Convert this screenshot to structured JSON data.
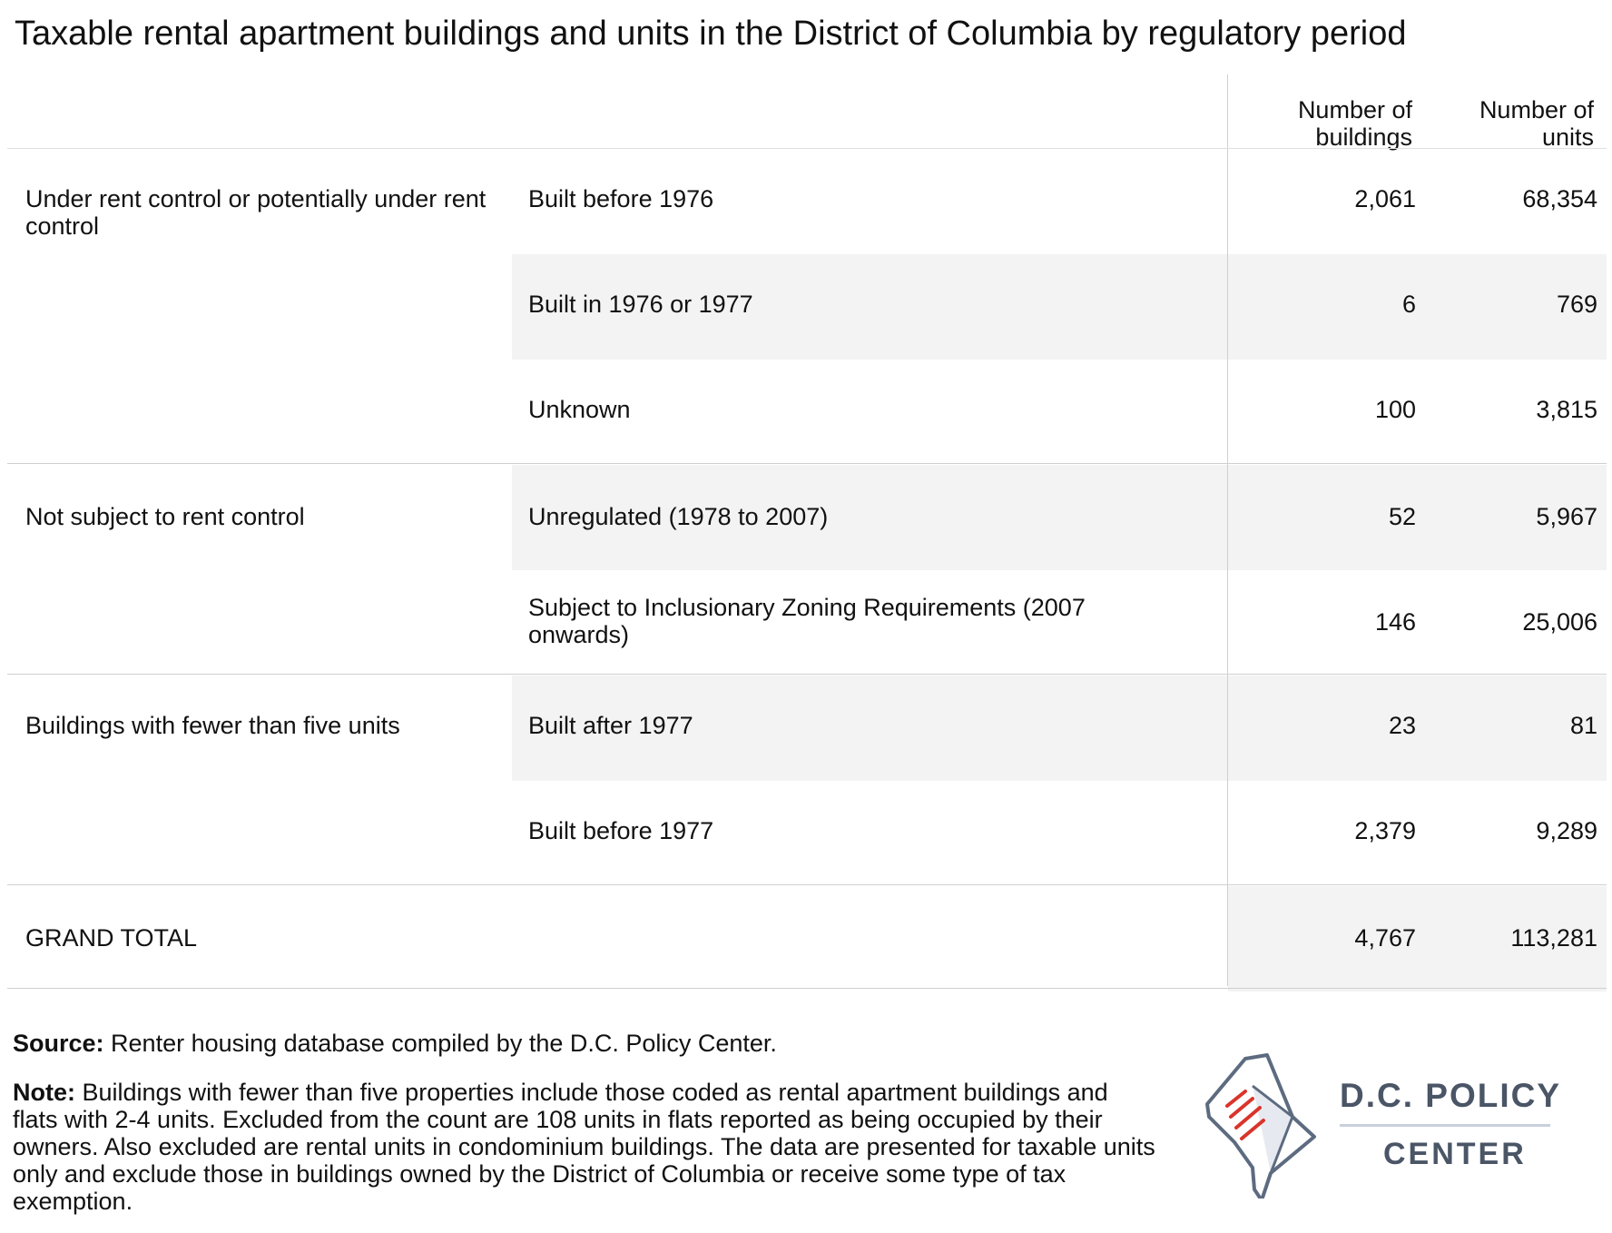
{
  "title": "Taxable rental apartment buildings and units in the District of Columbia by regulatory period",
  "header": {
    "buildings_line1": "Number of",
    "buildings_line2": "buildings",
    "units_line1": "Number of",
    "units_line2": "units"
  },
  "rows": [
    {
      "group": "Under rent control or potentially under rent control",
      "sub": "Built before 1976",
      "buildings": "2,061",
      "units": "68,354"
    },
    {
      "group": "",
      "sub": "Built in 1976 or 1977",
      "buildings": "6",
      "units": "769"
    },
    {
      "group": "",
      "sub": "Unknown",
      "buildings": "100",
      "units": "3,815"
    },
    {
      "group": "Not subject to rent control",
      "sub": "Unregulated (1978 to 2007)",
      "buildings": "52",
      "units": "5,967"
    },
    {
      "group": "",
      "sub": "Subject to Inclusionary Zoning Requirements (2007 onwards)",
      "buildings": "146",
      "units": "25,006"
    },
    {
      "group": "Buildings with fewer than five units",
      "sub": "Built after 1977",
      "buildings": "23",
      "units": "81"
    },
    {
      "group": "",
      "sub": "Built before 1977",
      "buildings": "2,379",
      "units": "9,289"
    },
    {
      "group": "GRAND TOTAL",
      "sub": "",
      "buildings": "4,767",
      "units": "113,281"
    }
  ],
  "footer": {
    "source_label": "Source:",
    "source_text": " Renter housing database compiled by the D.C. Policy Center.",
    "note_label": "Note:",
    "note_text": " Buildings with fewer than five properties include those coded as rental apartment buildings and flats with 2-4 units. Excluded from the count are 108 units in flats reported as being occupied by their owners. Also excluded are rental units in condominium buildings. The data are presented for taxable units only and exclude those in buildings owned by the District of Columbia or receive some type of tax exemption."
  },
  "logo": {
    "line1": "D.C. POLICY",
    "line2": "CENTER",
    "icon": "dc-map-document-icon",
    "colors": {
      "text": "#4a5566",
      "accent": "#d9342b",
      "outline": "#5d6b80"
    }
  }
}
